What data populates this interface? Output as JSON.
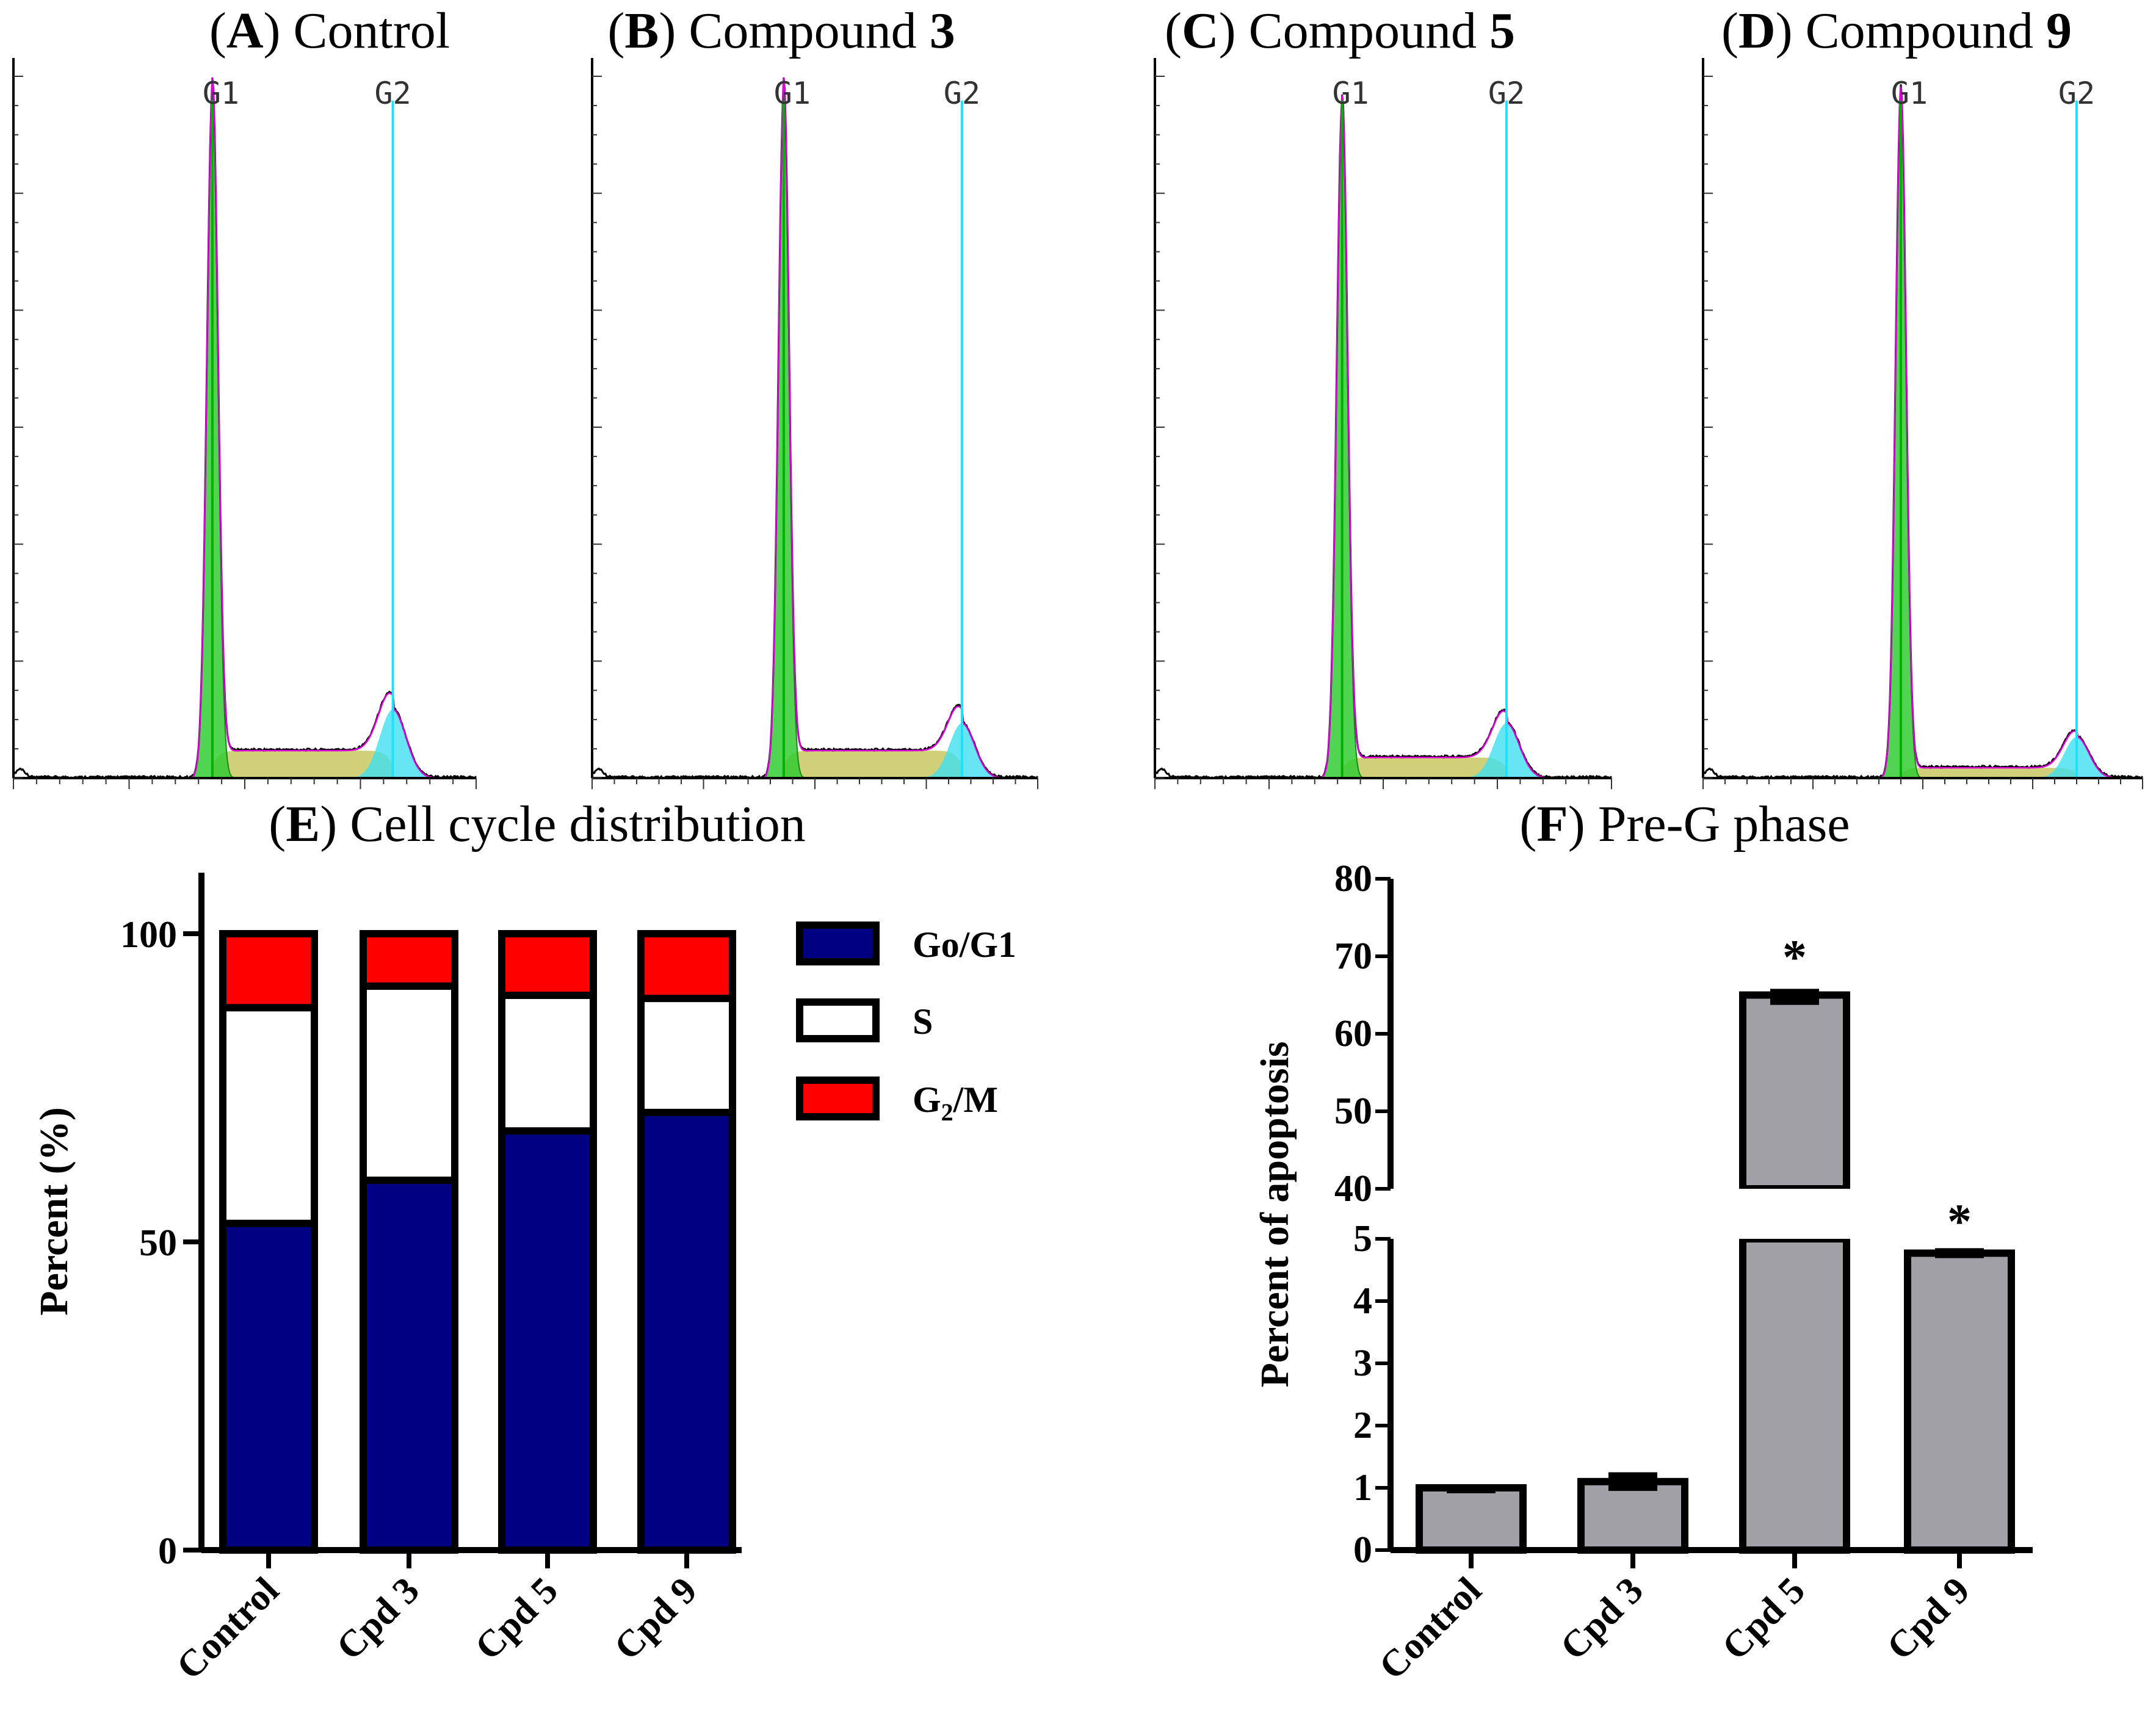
{
  "panels": {
    "A": {
      "letter": "A",
      "label": "Control",
      "bold_suffix": ""
    },
    "B": {
      "letter": "B",
      "label": "Compound",
      "bold_suffix": "3"
    },
    "C": {
      "letter": "C",
      "label": "Compound",
      "bold_suffix": "5"
    },
    "D": {
      "letter": "D",
      "label": "Compound",
      "bold_suffix": "9"
    },
    "E": {
      "letter": "E",
      "label": "Cell cycle distribution"
    },
    "F": {
      "letter": "F",
      "label": "Pre-G phase"
    }
  },
  "histogram_peaks": {
    "g1": "G1",
    "g2": "G2"
  },
  "colors": {
    "g0g1": "#000080",
    "s": "#ffffff",
    "g2m": "#ff0000",
    "apoptosis_bar": "#a0a0a6",
    "g1_fill": "#33cc33",
    "g2_fill": "#40e0f0",
    "s_fill": "#c8c860",
    "g1_line": "#00b000",
    "g2_line": "#20e0ff",
    "fit_curve": "#dd00dd",
    "raw_curve": "#000000"
  },
  "chart_data": [
    {
      "panel": "A",
      "type": "area",
      "title": "(A) Control",
      "xlabel": "",
      "ylabel": "",
      "x_range": [
        0,
        1
      ],
      "y_range": [
        0,
        1
      ],
      "peaks": [
        {
          "name": "G1",
          "x": 0.43,
          "height": 1.0
        },
        {
          "name": "G2",
          "x": 0.82,
          "height": 0.1
        }
      ],
      "s_phase_level": 0.04
    },
    {
      "panel": "B",
      "type": "area",
      "title": "(B) Compound 3",
      "xlabel": "",
      "ylabel": "",
      "x_range": [
        0,
        1
      ],
      "y_range": [
        0,
        1
      ],
      "peaks": [
        {
          "name": "G1",
          "x": 0.43,
          "height": 1.0
        },
        {
          "name": "G2",
          "x": 0.83,
          "height": 0.08
        }
      ],
      "s_phase_level": 0.04
    },
    {
      "panel": "C",
      "type": "area",
      "title": "(C) Compound 5",
      "xlabel": "",
      "ylabel": "",
      "x_range": [
        0,
        1
      ],
      "y_range": [
        0,
        1
      ],
      "peaks": [
        {
          "name": "G1",
          "x": 0.41,
          "height": 0.98
        },
        {
          "name": "G2",
          "x": 0.77,
          "height": 0.08
        }
      ],
      "s_phase_level": 0.03
    },
    {
      "panel": "D",
      "type": "area",
      "title": "(D) Compound 9",
      "xlabel": "",
      "ylabel": "",
      "x_range": [
        0,
        1
      ],
      "y_range": [
        0,
        1
      ],
      "peaks": [
        {
          "name": "G1",
          "x": 0.45,
          "height": 1.0
        },
        {
          "name": "G2",
          "x": 0.85,
          "height": 0.06
        }
      ],
      "s_phase_level": 0.015
    },
    {
      "panel": "E",
      "type": "bar",
      "stacked": true,
      "title": "(E) Cell cycle distribution",
      "xlabel": "",
      "ylabel": "Percent (%)",
      "ylim": [
        0,
        100
      ],
      "yticks": [
        0,
        50,
        100
      ],
      "categories": [
        "Control",
        "Cpd 3",
        "Cpd 5",
        "Cpd 9"
      ],
      "series": [
        {
          "name": "Go/G1",
          "values": [
            53,
            60,
            68,
            71
          ]
        },
        {
          "name": "S",
          "values": [
            35,
            31.5,
            22,
            18.5
          ]
        },
        {
          "name": "G2/M",
          "values": [
            12,
            8.5,
            10,
            10.5
          ]
        }
      ],
      "legend": [
        "Go/G1",
        "S",
        "G2/M"
      ],
      "legend_position": "right"
    },
    {
      "panel": "F",
      "type": "bar",
      "title": "(F) Pre-G phase",
      "xlabel": "",
      "ylabel": "Percent of apoptosis",
      "broken_axis": true,
      "lower_range": [
        0,
        5
      ],
      "upper_range": [
        40,
        80
      ],
      "yticks_lower": [
        0,
        1,
        2,
        3,
        4,
        5
      ],
      "yticks_upper": [
        40,
        50,
        60,
        70,
        80
      ],
      "categories": [
        "Control",
        "Cpd 3",
        "Cpd 5",
        "Cpd 9"
      ],
      "values": [
        1.0,
        1.1,
        65.0,
        4.77
      ],
      "errors": [
        0.05,
        0.15,
        0.8,
        0.08
      ],
      "significance": [
        "",
        "",
        "*",
        "*"
      ]
    }
  ]
}
